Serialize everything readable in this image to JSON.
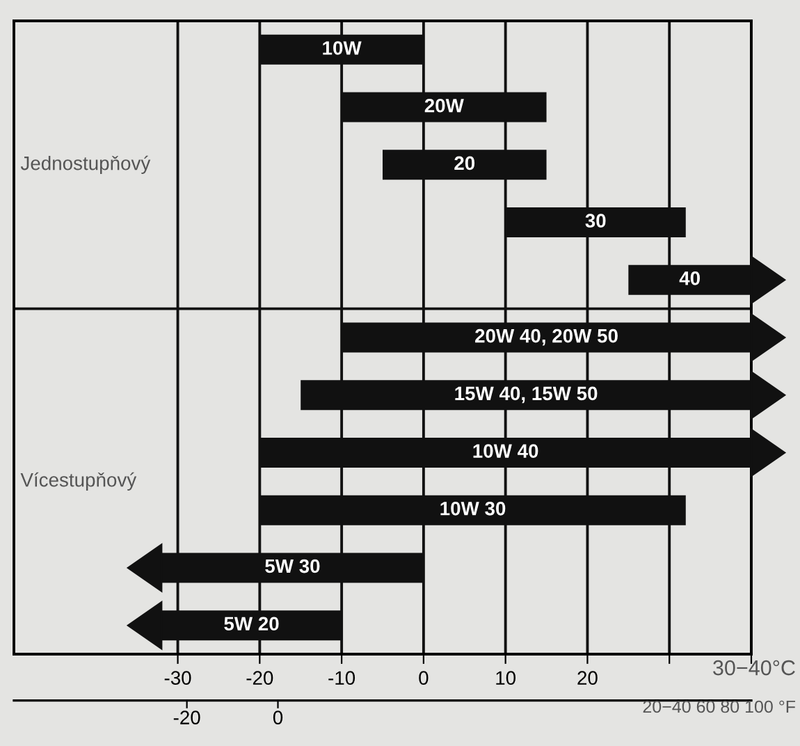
{
  "chart_data": {
    "type": "bar",
    "orientation": "horizontal",
    "categories": [
      null,
      null,
      null,
      null,
      null,
      null,
      null,
      null,
      null,
      null,
      null
    ],
    "series": [
      {
        "color": "#111111",
        "values": [
          20,
          25,
          20,
          22,
          null,
          null,
          null,
          null,
          52,
          null,
          null
        ],
        "base": [
          -20,
          -10,
          -5,
          10,
          null,
          null,
          null,
          null,
          -20,
          null,
          null
        ]
      },
      {
        "color": "#111111",
        "marker": "triangle",
        "values": [
          null,
          null,
          null,
          null,
          15,
          50,
          55,
          60,
          null,
          32,
          22
        ],
        "base": [
          null,
          null,
          null,
          null,
          25,
          -10,
          -15,
          -20,
          null,
          -32,
          -32
        ]
      }
    ],
    "value_labels": [
      "10W",
      "20W",
      "20",
      "30",
      "40",
      "20W 40, 20W 50",
      "15W 40, 15W 50",
      "10W 40",
      "10W 30",
      "5W 30",
      "5W 20"
    ],
    "xlim": [
      -50,
      40
    ],
    "xticks": [
      -30,
      -20,
      -10,
      0,
      10,
      20,
      {
        "value": 30,
        "label": null
      },
      {
        "value": 40,
        "label": null
      }
    ],
    "x2lim": [
      -58,
      104
    ],
    "x2ticks": [
      -20,
      0
    ],
    "grid": "x",
    "tick_labels": "x",
    "annotations": [
      "Jednostupňový",
      "Vícestupňový",
      "30−40°C",
      "20−40 60 80 100 °F"
    ]
  }
}
